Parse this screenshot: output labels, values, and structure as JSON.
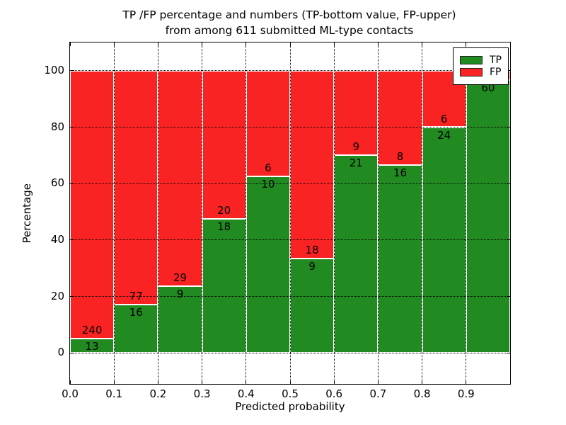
{
  "title": {
    "line1": "TP /FP percentage and numbers (TP-bottom value, FP-upper)",
    "line2": "from among 611 submitted ML-type contacts"
  },
  "axes": {
    "xlabel": "Predicted probability",
    "ylabel": "Percentage",
    "xtick_labels": [
      "0.0",
      "0.1",
      "0.2",
      "0.3",
      "0.4",
      "0.5",
      "0.6",
      "0.7",
      "0.8",
      "0.9"
    ],
    "ytick_labels": [
      "0",
      "20",
      "40",
      "60",
      "80",
      "100"
    ],
    "ytick_values": [
      0,
      20,
      40,
      60,
      80,
      100
    ],
    "xlim": [
      0.0,
      1.0
    ],
    "ylim": [
      -11,
      110
    ],
    "grid": "dotted black, drawn over bars"
  },
  "legend": {
    "position": "upper right",
    "items": [
      {
        "label": "TP",
        "color": "#218a21"
      },
      {
        "label": "FP",
        "color": "#fa2323"
      }
    ]
  },
  "colors": {
    "tp": "#218a21",
    "fp": "#fa2323",
    "bar_edge": "#ffffff",
    "background": "#ffffff",
    "text": "#000000"
  },
  "chart_data": {
    "type": "bar",
    "stacked": true,
    "normalized_to_percent": 100,
    "bin_edges": [
      0.0,
      0.1,
      0.2,
      0.3,
      0.4,
      0.5,
      0.6,
      0.7,
      0.8,
      0.9,
      1.0
    ],
    "series": [
      {
        "name": "TP",
        "counts": [
          13,
          16,
          9,
          18,
          10,
          9,
          21,
          16,
          24,
          60
        ]
      },
      {
        "name": "FP",
        "counts": [
          240,
          77,
          29,
          20,
          6,
          18,
          9,
          8,
          6,
          null
        ]
      }
    ],
    "tp_percent": [
      5.14,
      17.2,
      23.68,
      47.37,
      62.5,
      33.33,
      70.0,
      66.67,
      80.0,
      96.77
    ],
    "note": "FP count label of last bin hidden behind legend; each bar stacks to 100%"
  }
}
